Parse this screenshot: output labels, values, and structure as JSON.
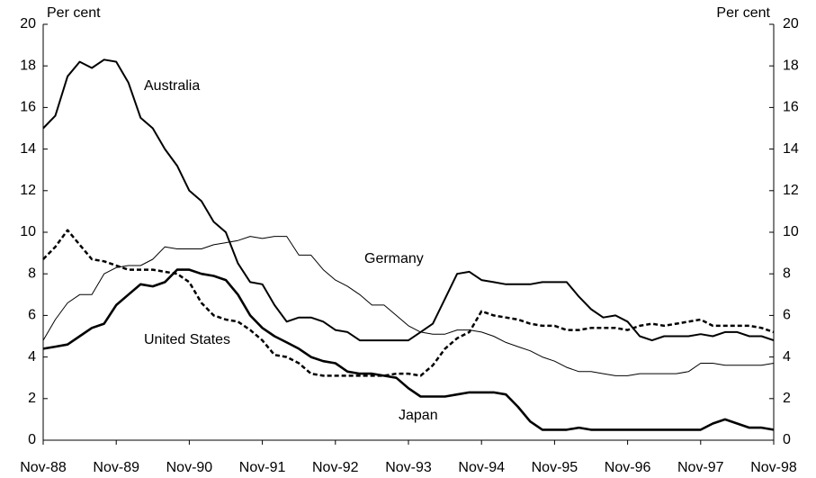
{
  "chart_data": {
    "type": "line",
    "y_label": "Per cent",
    "y2_label": "Per cent",
    "categories": [
      "Nov-88",
      null,
      null,
      null,
      null,
      null,
      "Nov-89",
      null,
      null,
      null,
      null,
      null,
      "Nov-90",
      null,
      null,
      null,
      null,
      null,
      "Nov-91",
      null,
      null,
      null,
      null,
      null,
      "Nov-92",
      null,
      null,
      null,
      null,
      null,
      "Nov-93",
      null,
      null,
      null,
      null,
      null,
      "Nov-94",
      null,
      null,
      null,
      null,
      null,
      "Nov-95",
      null,
      null,
      null,
      null,
      null,
      "Nov-96",
      null,
      null,
      null,
      null,
      null,
      "Nov-97",
      null,
      null,
      null,
      null,
      null,
      "Nov-98"
    ],
    "ylim": [
      0,
      20
    ],
    "yticks": [
      0,
      2,
      4,
      6,
      8,
      10,
      12,
      14,
      16,
      18,
      20
    ],
    "y2lim": [
      0,
      20
    ],
    "y2ticks": [
      0,
      2,
      4,
      6,
      8,
      10,
      12,
      14,
      16,
      18,
      20
    ],
    "grid": false,
    "series": [
      {
        "name": "Australia",
        "color": "#000000",
        "line_style": "solid",
        "values": [
          15,
          15.6,
          17.5,
          18.2,
          17.9,
          18.3,
          18.2,
          17.2,
          15.5,
          15.0,
          14.0,
          13.2,
          12.0,
          11.5,
          10.5,
          10.0,
          8.5,
          7.6,
          7.5,
          6.5,
          5.7,
          5.9,
          5.9,
          5.7,
          5.3,
          5.2,
          4.8,
          4.8,
          4.8,
          4.8,
          4.8,
          5.2,
          5.6,
          6.8,
          8.0,
          8.1,
          7.7,
          7.6,
          7.5,
          7.5,
          7.5,
          7.6,
          7.6,
          7.6,
          6.9,
          6.3,
          5.9,
          6.0,
          5.7,
          5.0,
          4.8,
          5.0,
          5.0,
          5.0,
          5.1,
          5.0,
          5.2,
          5.2,
          5.0,
          5.0,
          4.8
        ]
      },
      {
        "name": "Germany",
        "color": "#000000",
        "line_style": "thin",
        "values": [
          4.8,
          5.8,
          6.6,
          7.0,
          7.0,
          8.0,
          8.3,
          8.4,
          8.4,
          8.7,
          9.3,
          9.2,
          9.2,
          9.2,
          9.4,
          9.5,
          9.6,
          9.8,
          9.7,
          9.8,
          9.8,
          8.9,
          8.9,
          8.2,
          7.7,
          7.4,
          7.0,
          6.5,
          6.5,
          6.0,
          5.5,
          5.2,
          5.1,
          5.1,
          5.3,
          5.3,
          5.2,
          5.0,
          4.7,
          4.5,
          4.3,
          4.0,
          3.8,
          3.5,
          3.3,
          3.3,
          3.2,
          3.1,
          3.1,
          3.2,
          3.2,
          3.2,
          3.2,
          3.3,
          3.7,
          3.7,
          3.6,
          3.6,
          3.6,
          3.6,
          3.7
        ]
      },
      {
        "name": "United States",
        "color": "#000000",
        "line_style": "dashed",
        "values": [
          8.7,
          9.3,
          10.1,
          9.4,
          8.7,
          8.6,
          8.4,
          8.2,
          8.2,
          8.2,
          8.1,
          8.0,
          7.6,
          6.6,
          6.0,
          5.8,
          5.7,
          5.3,
          4.8,
          4.1,
          4.0,
          3.7,
          3.2,
          3.1,
          3.1,
          3.1,
          3.1,
          3.1,
          3.1,
          3.2,
          3.2,
          3.1,
          3.6,
          4.4,
          4.9,
          5.2,
          6.2,
          6.0,
          5.9,
          5.8,
          5.6,
          5.5,
          5.5,
          5.3,
          5.3,
          5.4,
          5.4,
          5.4,
          5.3,
          5.5,
          5.6,
          5.5,
          5.6,
          5.7,
          5.8,
          5.5,
          5.5,
          5.5,
          5.5,
          5.4,
          5.2
        ]
      },
      {
        "name": "Japan",
        "color": "#000000",
        "line_style": "thick",
        "values": [
          4.4,
          4.5,
          4.6,
          5.0,
          5.4,
          5.6,
          6.5,
          7.0,
          7.5,
          7.4,
          7.6,
          8.2,
          8.2,
          8.0,
          7.9,
          7.7,
          7.0,
          6.0,
          5.4,
          5.0,
          4.7,
          4.4,
          4.0,
          3.8,
          3.7,
          3.3,
          3.2,
          3.2,
          3.1,
          3.0,
          2.5,
          2.1,
          2.1,
          2.1,
          2.2,
          2.3,
          2.3,
          2.3,
          2.2,
          1.6,
          0.9,
          0.5,
          0.5,
          0.5,
          0.6,
          0.5,
          0.5,
          0.5,
          0.5,
          0.5,
          0.5,
          0.5,
          0.5,
          0.5,
          0.5,
          0.8,
          1.0,
          0.8,
          0.6,
          0.6,
          0.5
        ]
      }
    ]
  }
}
